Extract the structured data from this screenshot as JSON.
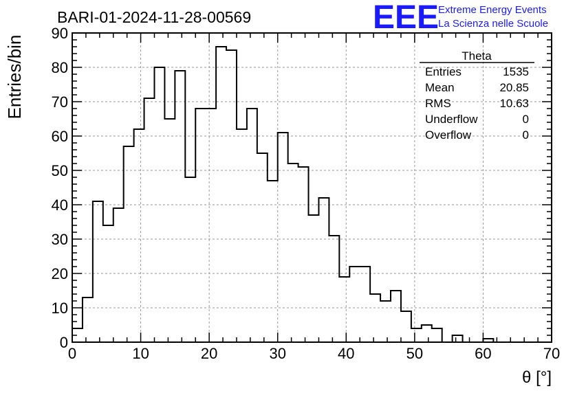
{
  "chart_data": {
    "type": "bar",
    "style": "step-histogram",
    "title": "BARI-01-2024-11-28-00569",
    "xlabel": "θ [°]",
    "ylabel": "Entries/bin",
    "xlim": [
      0,
      70
    ],
    "ylim": [
      0,
      90
    ],
    "bin_width": 1.5,
    "x_ticks": [
      0,
      10,
      20,
      30,
      40,
      50,
      60,
      70
    ],
    "y_ticks": [
      0,
      10,
      20,
      30,
      40,
      50,
      60,
      70,
      80,
      90
    ],
    "grid": true,
    "values": [
      4,
      13,
      41,
      34,
      39,
      57,
      62,
      71,
      80,
      65,
      79,
      48,
      68,
      68,
      86,
      85,
      62,
      68,
      55,
      47,
      61,
      52,
      51,
      37,
      42,
      31,
      19,
      22,
      22,
      14,
      12,
      15,
      9,
      4,
      5,
      4,
      0,
      2,
      0,
      0,
      1,
      0,
      0,
      0,
      0,
      0,
      0
    ],
    "stats": {
      "name": "Theta",
      "rows": [
        {
          "label": "Entries",
          "value": "1535"
        },
        {
          "label": "Mean",
          "value": "20.85"
        },
        {
          "label": "RMS",
          "value": "10.63"
        },
        {
          "label": "Underflow",
          "value": "0"
        },
        {
          "label": "Overflow",
          "value": "0"
        }
      ]
    }
  },
  "logo": {
    "text": "EEE",
    "line1": "Extreme Energy Events",
    "line2": "La Scienza nelle Scuole"
  },
  "colors": {
    "logo": "#1a1aff",
    "line": "#000000",
    "grid": "#999999"
  }
}
